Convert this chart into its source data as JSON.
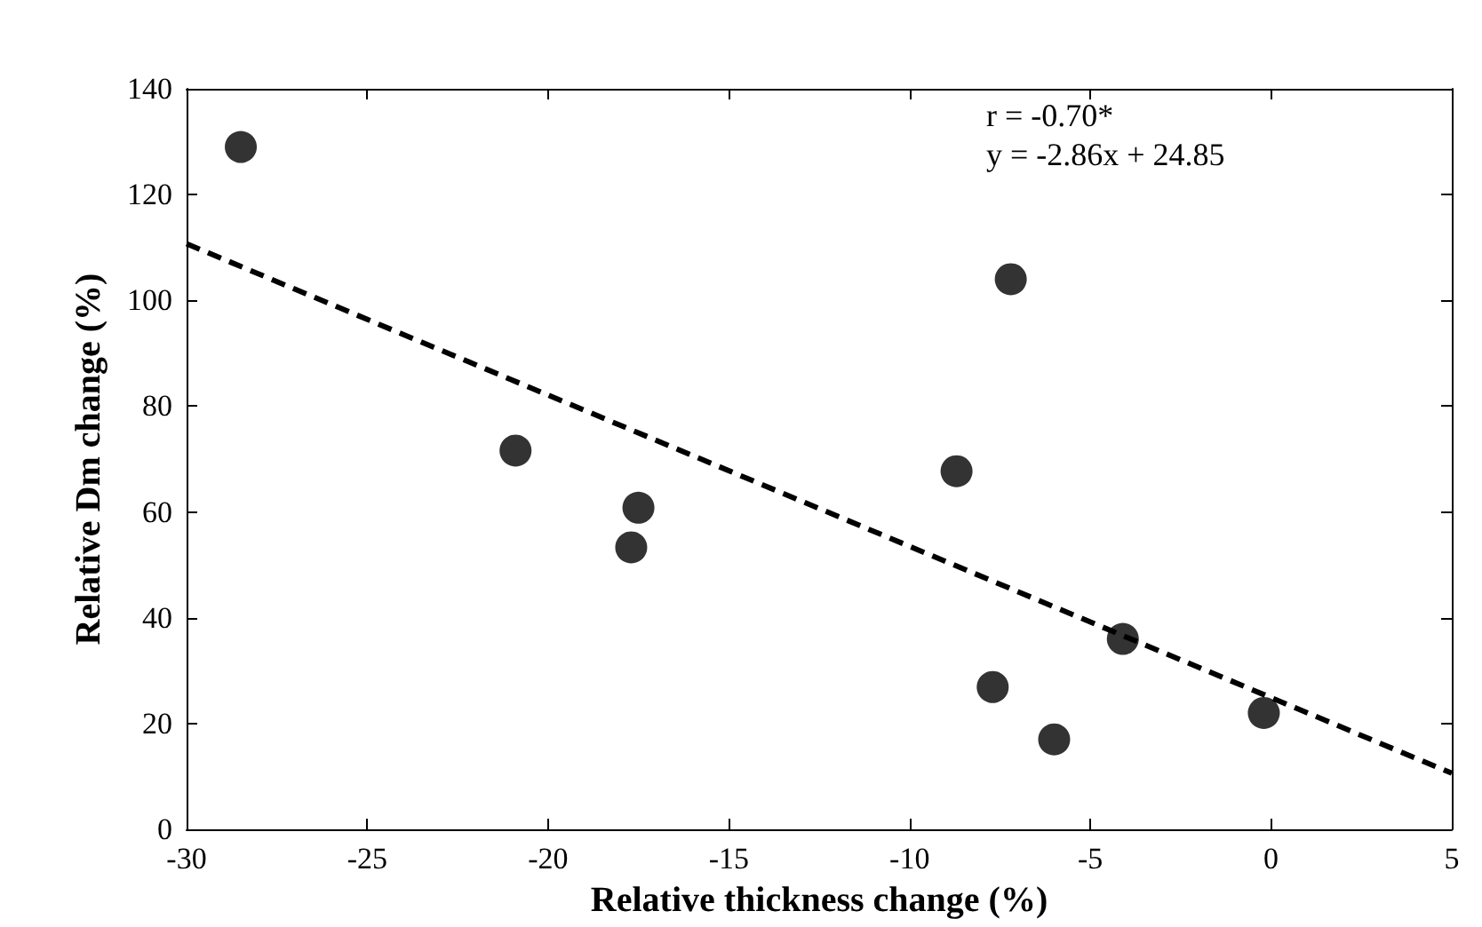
{
  "chart_data": {
    "type": "scatter",
    "xlabel": "Relative thickness change (%)",
    "ylabel": "Relative Dm change (%)",
    "annotations": [
      "r = -0.70*",
      "y = -2.86x + 24.85"
    ],
    "xlim": [
      -30,
      5
    ],
    "xticks": [
      -30,
      -25,
      -20,
      -15,
      -10,
      -5,
      0,
      5
    ],
    "ylim": [
      0,
      140
    ],
    "yticks": [
      0,
      20,
      40,
      60,
      80,
      100,
      120,
      140
    ],
    "marker": "circle",
    "series": [
      {
        "color": "#000000",
        "x": [
          -28.5,
          -20.9,
          -17.5,
          -17.7,
          -7.2,
          -8.7,
          -4.1,
          -7.7,
          -6.0,
          -0.2
        ],
        "values": [
          129,
          71.6,
          60.8,
          53.3,
          104,
          67.7,
          36,
          26.9,
          17,
          22
        ]
      },
      {
        "type": "line",
        "color": "#000000",
        "line_style": "dashed",
        "marker": "none",
        "x": [
          -30,
          5
        ],
        "values": [
          110.7,
          10.6
        ]
      }
    ]
  }
}
